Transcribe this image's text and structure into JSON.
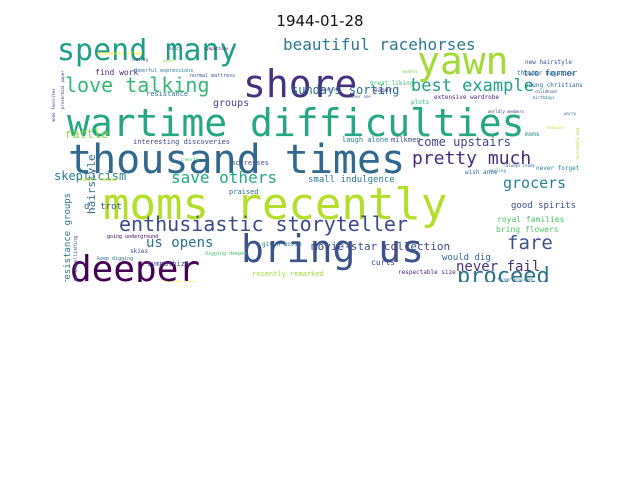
{
  "title": "1944-01-28",
  "words": [
    {
      "t": "moms recently",
      "c": "#b5de2b"
    },
    {
      "t": "wartime difficulties",
      "c": "#26a784"
    },
    {
      "t": "thousand times",
      "c": "#31688e"
    },
    {
      "t": "bring us",
      "c": "#3b528b"
    },
    {
      "t": "deeper",
      "c": "#440154"
    },
    {
      "t": "shore",
      "c": "#46327e"
    },
    {
      "t": "yawn",
      "c": "#a2da37"
    },
    {
      "t": "spend many",
      "c": "#1f9e89"
    },
    {
      "t": "love talking",
      "c": "#35b779"
    },
    {
      "t": "beautiful racehorses",
      "c": "#2a788e"
    },
    {
      "t": "best example",
      "c": "#1f9e89"
    },
    {
      "t": "pretty much",
      "c": "#472d7b"
    },
    {
      "t": "enthusiastic storyteller",
      "c": "#3e4989"
    },
    {
      "t": "proceed",
      "c": "#2c728e"
    },
    {
      "t": "fare",
      "c": "#3b528b"
    },
    {
      "t": "save others",
      "c": "#22a884"
    },
    {
      "t": "grocers",
      "c": "#25858e"
    },
    {
      "t": "never fail",
      "c": "#46337e"
    },
    {
      "t": "sure someone",
      "c": "#453781"
    },
    {
      "t": "us opens",
      "c": "#2d708e"
    },
    {
      "t": "sundays sorting",
      "c": "#2e6d8e"
    },
    {
      "t": "come upstairs",
      "c": "#404688"
    },
    {
      "t": "movie-star collection",
      "c": "#3e4a89"
    },
    {
      "t": "secretly wish",
      "c": "#7ad151"
    },
    {
      "t": "skepticism",
      "c": "#287d8e"
    },
    {
      "t": "rattle",
      "c": "#8fd744"
    },
    {
      "t": "groups",
      "c": "#3f4788"
    },
    {
      "t": "two former",
      "c": "#38598c"
    },
    {
      "t": "small indulgence",
      "c": "#2a788e"
    },
    {
      "t": "monotonous fare",
      "c": "#31688e"
    },
    {
      "t": "hairstyle",
      "c": "#2e6e8e"
    },
    {
      "t": "good spirits",
      "c": "#3c4f8a"
    },
    {
      "t": "royal families",
      "c": "#4cc26c"
    },
    {
      "t": "bring flowers",
      "c": "#54c568"
    },
    {
      "t": "resistance groups",
      "c": "#2a788e"
    },
    {
      "t": "find work",
      "c": "#472a7a"
    },
    {
      "t": "would dig",
      "c": "#31688e"
    },
    {
      "t": "curls",
      "c": "#3e4a89"
    },
    {
      "t": "d. trot",
      "c": "#38598c"
    },
    {
      "t": "laugh alone",
      "c": "#277f8e"
    },
    {
      "t": "milkmen",
      "c": "#3b528b"
    },
    {
      "t": "praised",
      "c": "#2c738e"
    },
    {
      "t": "actresses",
      "c": "#3a548c"
    },
    {
      "t": "given movie",
      "c": "#2e6f8e"
    },
    {
      "t": "sympathize",
      "c": "#3e4c8a"
    },
    {
      "t": "interesting discoveries",
      "c": "#3f4889"
    },
    {
      "t": "recently remarked",
      "c": "#a0da39"
    },
    {
      "t": "respectable size",
      "c": "#472d7b"
    },
    {
      "t": "never forget",
      "c": "#26828e"
    },
    {
      "t": "extensive wardrobe",
      "c": "#472c7a"
    },
    {
      "t": "wish anne",
      "c": "#2e6d8e"
    },
    {
      "t": "great liking",
      "c": "#3aba76"
    },
    {
      "t": "new hairstyle",
      "c": "#3b528b"
    },
    {
      "t": "theater magazine",
      "c": "#2a788e"
    },
    {
      "t": "young christians",
      "c": "#31688e"
    },
    {
      "t": "eager",
      "c": "#453882"
    },
    {
      "t": "plots",
      "c": "#2fb47c"
    },
    {
      "t": "moms",
      "c": "#25858e"
    },
    {
      "t": "skies",
      "c": "#3e4a89"
    },
    {
      "t": "resistance",
      "c": "#2c738e"
    },
    {
      "t": "normal mattress",
      "c": "#38598c"
    },
    {
      "t": "household often",
      "c": "#fde725"
    },
    {
      "t": "time embellishing",
      "c": "#3f4889"
    },
    {
      "t": "every sunday",
      "c": "#c8e020"
    },
    {
      "t": "going underground",
      "c": "#440154"
    },
    {
      "t": "keep digging",
      "c": "#2e6e8e"
    },
    {
      "t": "fourth time",
      "c": "#e5e419"
    },
    {
      "t": "digging deeper",
      "c": "#4ac16d"
    },
    {
      "t": "always ready",
      "c": "#31688e"
    },
    {
      "t": "former housemen",
      "c": "#2c738e"
    },
    {
      "t": "hopefully bring",
      "c": "#3b528b"
    },
    {
      "t": "whenever one",
      "c": "#21918c"
    },
    {
      "t": "cheerful expressions",
      "c": "#2a788e"
    },
    {
      "t": "childhood",
      "c": "#3e4c8a"
    },
    {
      "t": "birthdays",
      "c": "#2d708e"
    },
    {
      "t": "worldly members",
      "c": "#453882"
    },
    {
      "t": "upset",
      "c": "#8fd744"
    },
    {
      "t": "proverbial paper",
      "c": "#46327e"
    },
    {
      "t": "moms favorites",
      "c": "#453781"
    },
    {
      "t": "extremely bad",
      "c": "#9dd93b"
    },
    {
      "t": "punch",
      "c": "#2e6e8e"
    },
    {
      "t": "sympathize",
      "c": "#482173"
    },
    {
      "t": "leaving",
      "c": "#404688"
    },
    {
      "t": "hopefully",
      "c": "#3e4a89"
    },
    {
      "t": "never one",
      "c": "#3b528b"
    },
    {
      "t": "heavier",
      "c": "#b5de2b"
    },
    {
      "t": "worry",
      "c": "#31688e"
    },
    {
      "t": "sailing",
      "c": "#2a788e"
    },
    {
      "t": "modest",
      "c": "#7ad151"
    },
    {
      "t": "cheerful",
      "c": "#3fbc73"
    }
  ]
}
